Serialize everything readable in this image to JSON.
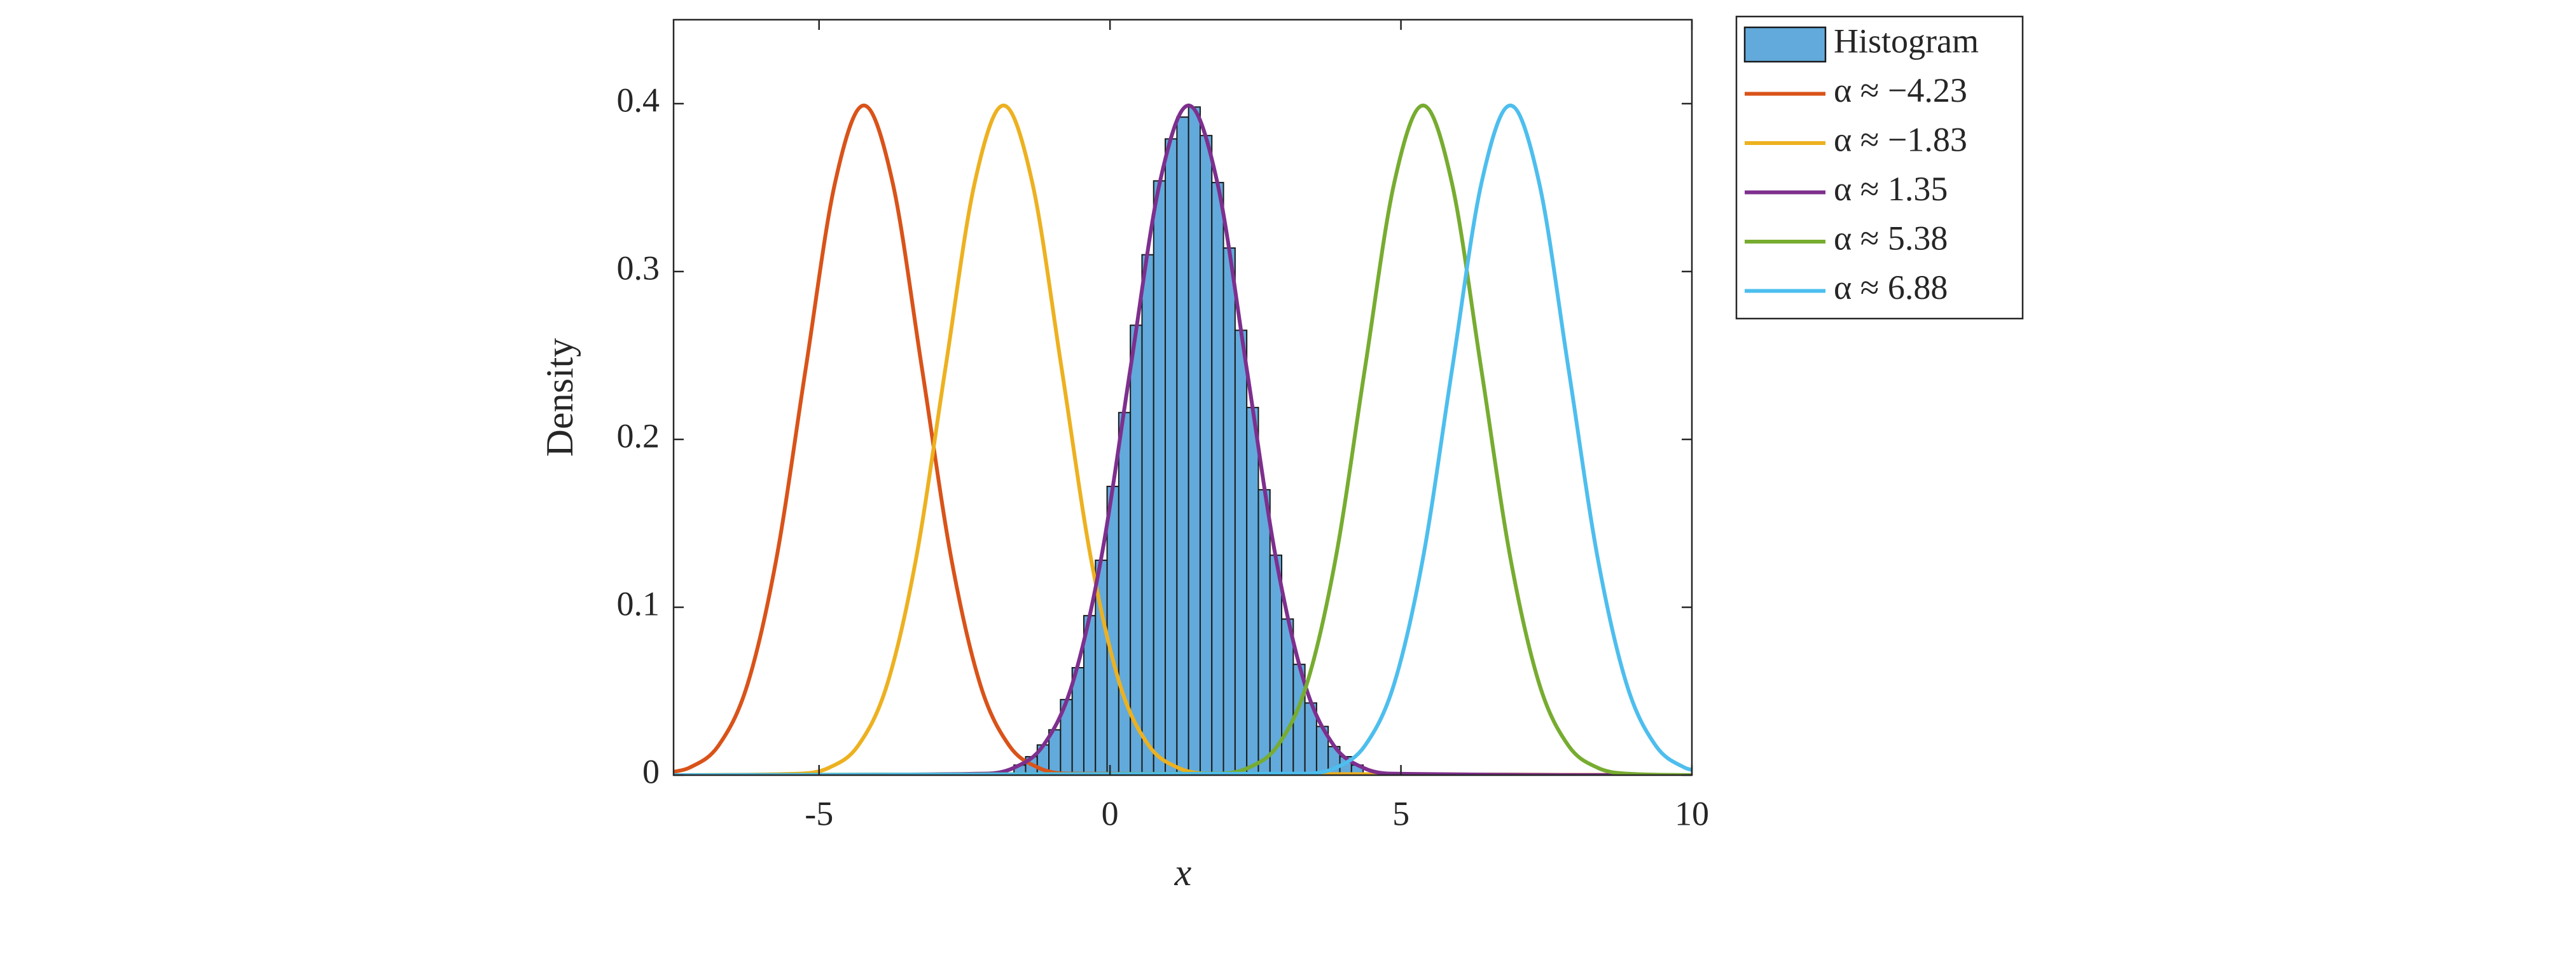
{
  "chart_data": {
    "type": "histogram",
    "x_label": "x",
    "y_label": "Density",
    "xlim": [
      -7.5,
      10
    ],
    "ylim": [
      0,
      0.45
    ],
    "xticks": [
      -5,
      0,
      5,
      10
    ],
    "yticks": [
      0,
      0.1,
      0.2,
      0.3,
      0.4
    ],
    "grid": false,
    "legend_position": "outside-right",
    "histogram": {
      "name": "Histogram",
      "color": "#62aadb",
      "bins": [
        -1.65,
        -1.45,
        -1.25,
        -1.05,
        -0.85,
        -0.65,
        -0.45,
        -0.25,
        -0.05,
        0.15,
        0.35,
        0.55,
        0.75,
        0.95,
        1.15,
        1.35,
        1.55,
        1.75,
        1.95,
        2.15,
        2.35,
        2.55,
        2.75,
        2.95,
        3.15,
        3.35,
        3.55,
        3.75,
        3.95,
        4.15,
        4.35
      ],
      "values": [
        0.006,
        0.011,
        0.018,
        0.027,
        0.045,
        0.064,
        0.095,
        0.128,
        0.172,
        0.216,
        0.268,
        0.31,
        0.354,
        0.379,
        0.392,
        0.398,
        0.381,
        0.353,
        0.314,
        0.265,
        0.219,
        0.17,
        0.131,
        0.093,
        0.066,
        0.043,
        0.029,
        0.017,
        0.011,
        0.006
      ]
    },
    "series": [
      {
        "name": "α ≈ −4.23",
        "color": "#d95319",
        "x": [
          -7.5,
          -7.23,
          -6.73,
          -6.23,
          -5.73,
          -5.23,
          -4.73,
          -4.23,
          -3.73,
          -3.23,
          -2.73,
          -2.23,
          -1.73,
          -1.23,
          -0.73,
          10
        ],
        "values": [
          0.0019,
          0.0044,
          0.0175,
          0.054,
          0.1295,
          0.242,
          0.3521,
          0.3989,
          0.3521,
          0.242,
          0.1295,
          0.054,
          0.0175,
          0.0044,
          0.0009,
          0
        ]
      },
      {
        "name": "α ≈ −1.83",
        "color": "#edb120",
        "x": [
          -7.5,
          -5.33,
          -4.83,
          -4.33,
          -3.83,
          -3.33,
          -2.83,
          -2.33,
          -1.83,
          -1.33,
          -0.83,
          -0.33,
          0.17,
          0.67,
          1.17,
          1.67,
          10
        ],
        "values": [
          0,
          0.0009,
          0.0044,
          0.0175,
          0.054,
          0.1295,
          0.242,
          0.3521,
          0.3989,
          0.3521,
          0.242,
          0.1295,
          0.054,
          0.0175,
          0.0044,
          0.0009,
          0
        ]
      },
      {
        "name": "α ≈ 1.35",
        "color": "#7e2f8e",
        "x": [
          -7.5,
          -2.15,
          -1.65,
          -1.15,
          -0.65,
          -0.15,
          0.35,
          0.85,
          1.35,
          1.85,
          2.35,
          2.85,
          3.35,
          3.85,
          4.35,
          4.85,
          10
        ],
        "values": [
          0,
          0.0009,
          0.0044,
          0.0175,
          0.054,
          0.1295,
          0.242,
          0.3521,
          0.3989,
          0.3521,
          0.242,
          0.1295,
          0.054,
          0.0175,
          0.0044,
          0.0009,
          0
        ]
      },
      {
        "name": "α ≈ 5.38",
        "color": "#77ac30",
        "x": [
          -7.5,
          1.88,
          2.38,
          2.88,
          3.38,
          3.88,
          4.38,
          4.88,
          5.38,
          5.88,
          6.38,
          6.88,
          7.38,
          7.88,
          8.38,
          8.88,
          10
        ],
        "values": [
          0,
          0.0009,
          0.0044,
          0.0175,
          0.054,
          0.1295,
          0.242,
          0.3521,
          0.3989,
          0.3521,
          0.242,
          0.1295,
          0.054,
          0.0175,
          0.0044,
          0.0009,
          0
        ]
      },
      {
        "name": "α ≈ 6.88",
        "color": "#4dbeee",
        "x": [
          -7.5,
          3.38,
          3.88,
          4.38,
          4.88,
          5.38,
          5.88,
          6.38,
          6.88,
          7.38,
          7.88,
          8.38,
          8.88,
          9.38,
          9.88,
          10
        ],
        "values": [
          0,
          0.0009,
          0.0044,
          0.0175,
          0.054,
          0.1295,
          0.242,
          0.3521,
          0.3989,
          0.3521,
          0.242,
          0.1295,
          0.054,
          0.0175,
          0.0044,
          0.0031
        ]
      }
    ]
  }
}
